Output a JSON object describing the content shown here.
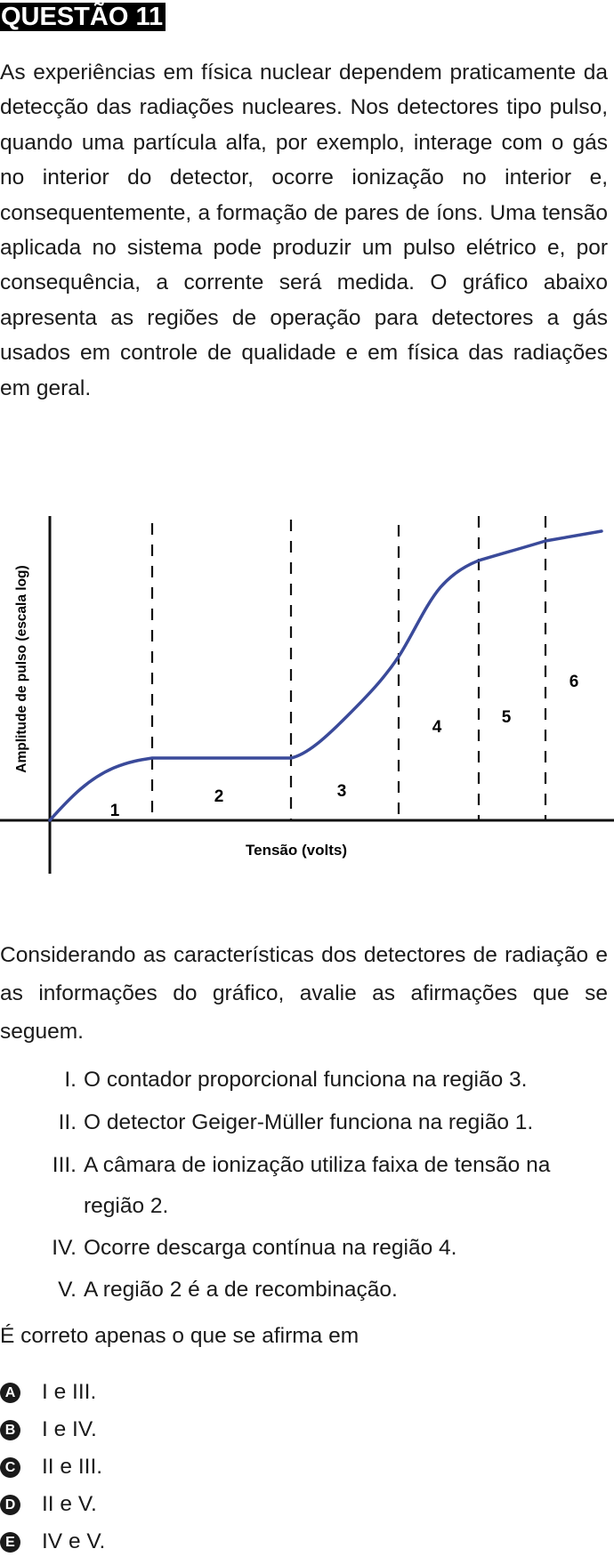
{
  "header": {
    "title": "QUESTÃO 11"
  },
  "intro": "As experiências em física nuclear dependem praticamente da detecção das radiações nucleares. Nos detectores tipo pulso, quando uma partícula alfa, por exemplo, interage com o gás no interior do detector, ocorre ionização no interior e, consequentemente, a formação de pares de íons. Uma tensão aplicada no sistema pode produzir um pulso elétrico e, por consequência, a corrente será medida. O gráfico abaixo apresenta as regiões de operação para detectores a gás usados em controle de qualidade e em física das radiações em geral.",
  "chart_data": {
    "type": "line",
    "xlabel": "Tensão (volts)",
    "ylabel": "Amplitude de pulso (escala log)",
    "region_labels": [
      "1",
      "2",
      "3",
      "4",
      "5",
      "6"
    ],
    "grid": false
  },
  "considerando": "Considerando as características dos detectores de radiação e as informações do gráfico, avalie as afirmações que se seguem.",
  "statements": [
    {
      "num": "I.",
      "text": "O contador proporcional funciona na região 3."
    },
    {
      "num": "II.",
      "text": "O detector Geiger-Müller funciona na região 1."
    },
    {
      "num": "III.",
      "text": "A câmara de ionização utiliza faixa de tensão na",
      "text2": "região 2."
    },
    {
      "num": "IV.",
      "text": "Ocorre descarga contínua na região 4."
    },
    {
      "num": "V.",
      "text": "A região 2 é a de recombinação."
    }
  ],
  "stem": "É correto apenas o que se afirma em",
  "options": [
    {
      "letter": "A",
      "text": "I e III."
    },
    {
      "letter": "B",
      "text": "I e IV."
    },
    {
      "letter": "C",
      "text": "II e III."
    },
    {
      "letter": "D",
      "text": "II e V."
    },
    {
      "letter": "E",
      "text": "IV e V."
    }
  ]
}
